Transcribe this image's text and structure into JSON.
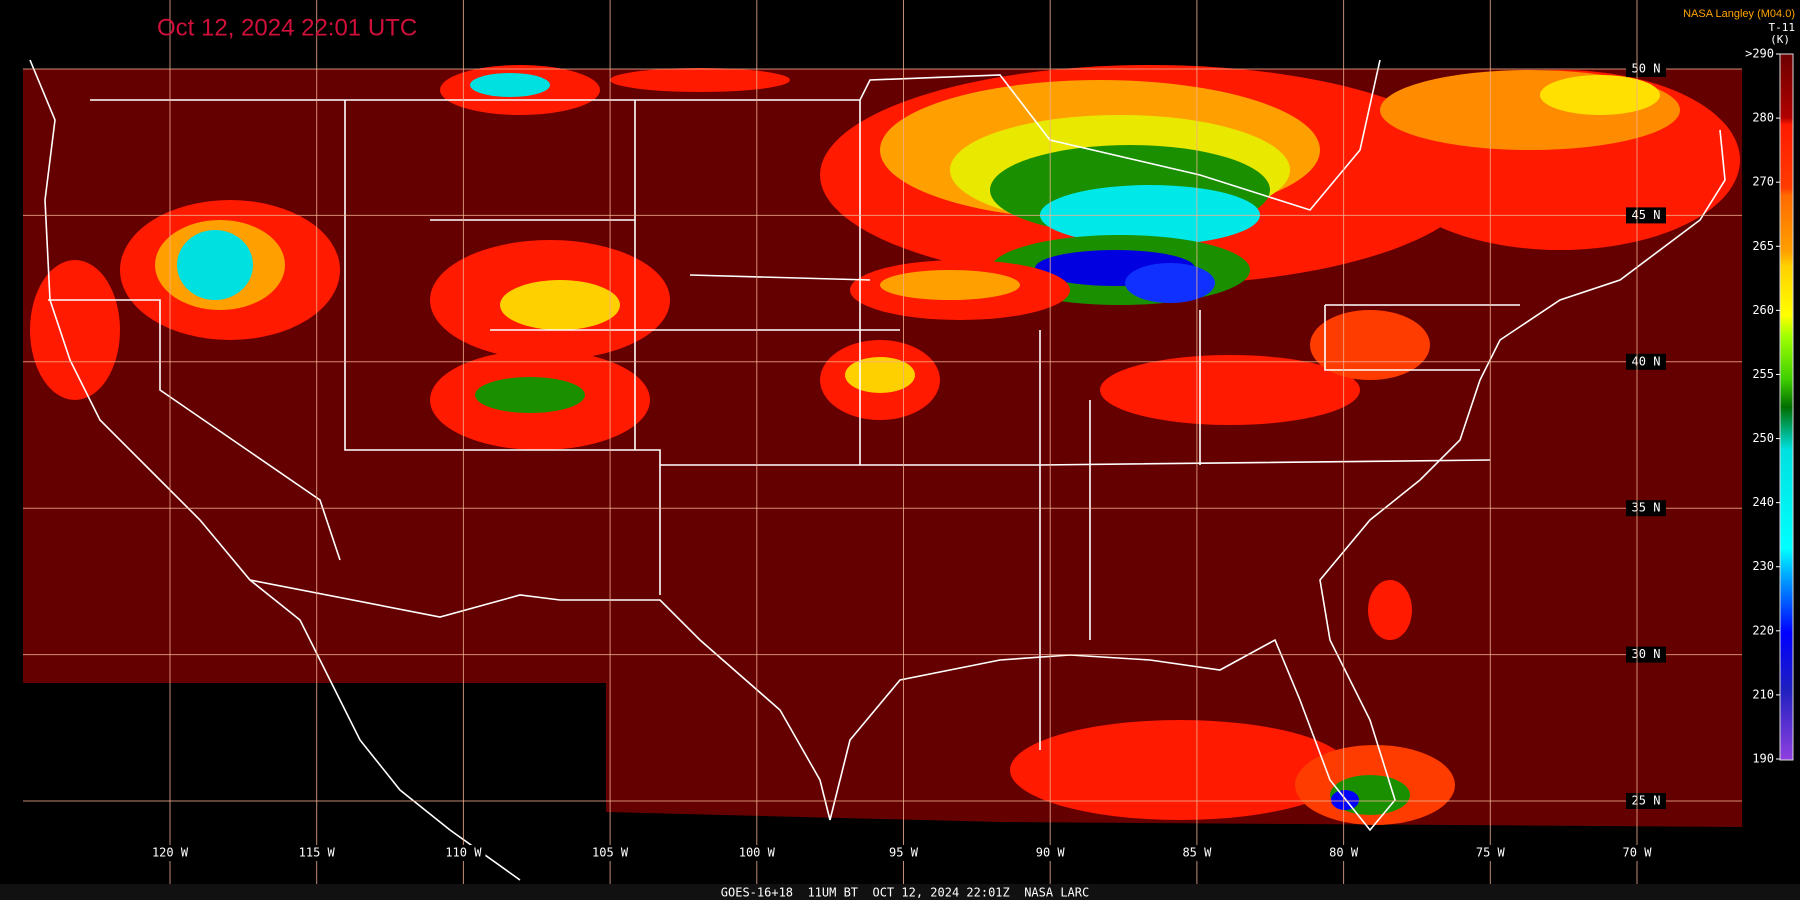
{
  "header": {
    "title": "Oct 12, 2024 22:01 UTC",
    "credit": "NASA Langley (M04.0)"
  },
  "legend": {
    "title": "T-11",
    "unit": "(K)",
    "labels": [
      ">290",
      "280",
      "270",
      "265",
      "260",
      "255",
      "250",
      "240",
      "230",
      "220",
      "210",
      "190"
    ]
  },
  "latitude_labels": [
    "50 N",
    "45 N",
    "40 N",
    "35 N",
    "30 N",
    "25 N"
  ],
  "longitude_labels": [
    "120 W",
    "115 W",
    "110 W",
    "105 W",
    "100 W",
    "95 W",
    "90 W",
    "85 W",
    "80 W",
    "75 W",
    "70 W"
  ],
  "footer": "GOES-16+18  11UM BT  OCT 12, 2024 22:01Z  NASA LARC"
}
